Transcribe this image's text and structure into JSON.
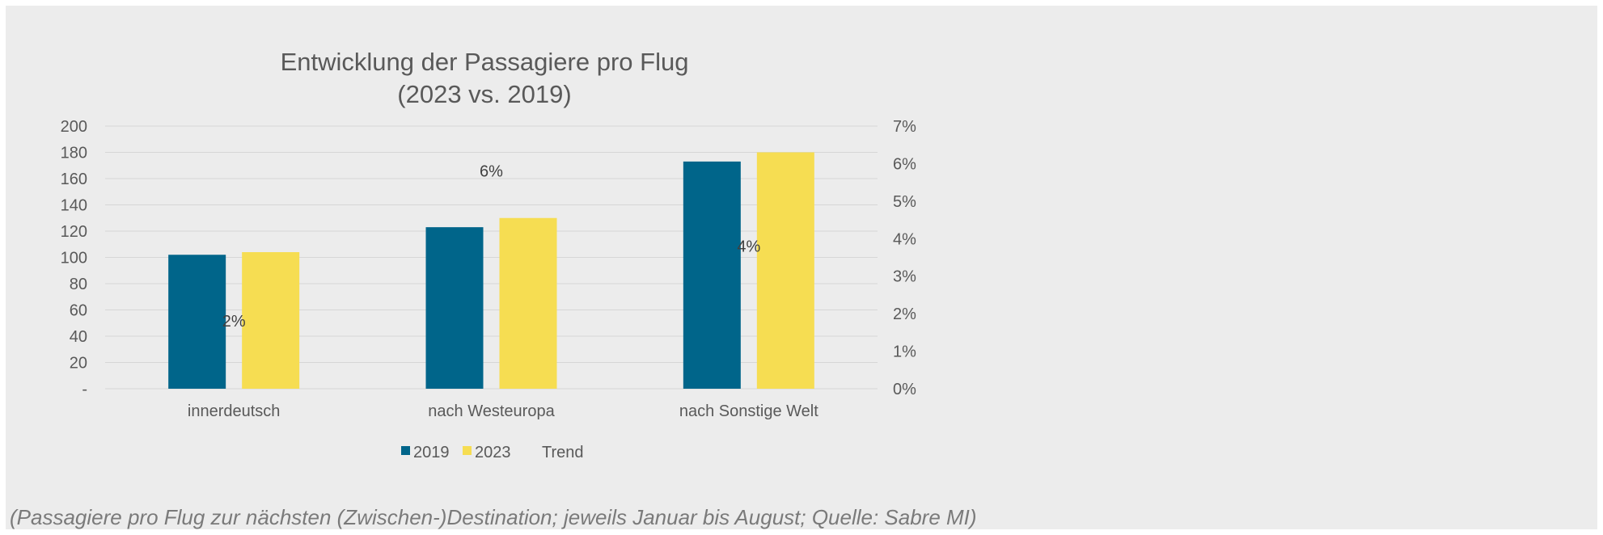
{
  "chart_data": {
    "type": "bar",
    "title": "Entwicklung der Passagiere pro Flug",
    "subtitle": "(2023 vs. 2019)",
    "categories": [
      "innerdeutsch",
      "nach Westeuropa",
      "nach Sonstige Welt"
    ],
    "series": [
      {
        "name": "2019",
        "values": [
          102,
          123,
          173
        ],
        "color": "#00658a"
      },
      {
        "name": "2023",
        "values": [
          104,
          130,
          180
        ],
        "color": "#f6dd52"
      },
      {
        "name": "Trend",
        "values": [
          0.02,
          0.06,
          0.04
        ],
        "type": "labels-only",
        "axis": "secondary"
      }
    ],
    "trend_labels": [
      "2%",
      "6%",
      "4%"
    ],
    "ylim": [
      0,
      200
    ],
    "yticks": [
      0,
      20,
      40,
      60,
      80,
      100,
      120,
      140,
      160,
      180,
      200
    ],
    "ytick_labels": [
      "-",
      "20",
      "40",
      "60",
      "80",
      "100",
      "120",
      "140",
      "160",
      "180",
      "200"
    ],
    "y2lim": [
      0,
      0.07
    ],
    "y2ticks": [
      0,
      0.01,
      0.02,
      0.03,
      0.04,
      0.05,
      0.06,
      0.07
    ],
    "y2tick_labels": [
      "0%",
      "1%",
      "2%",
      "3%",
      "4%",
      "5%",
      "6%",
      "7%"
    ],
    "grid": true,
    "legend_position": "bottom",
    "legend": [
      "2019",
      "2023",
      "Trend"
    ]
  },
  "caption": "(Passagiere pro Flug zur nächsten (Zwischen-)Destination; jeweils Januar bis August; Quelle: Sabre MI)",
  "colors": {
    "background": "#ececec",
    "gridline": "#d6d6d6",
    "text": "#595959"
  }
}
